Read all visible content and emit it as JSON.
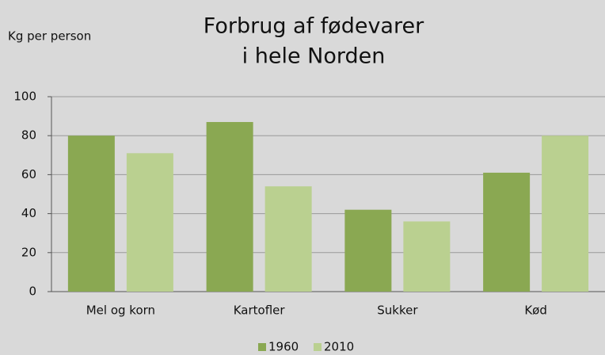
{
  "chart_data": {
    "type": "bar",
    "title": [
      "Forbrug af fødevarer",
      "i hele Norden"
    ],
    "y_label": "Kg per person",
    "categories": [
      "Mel og korn",
      "Kartofler",
      "Sukker",
      "Kød"
    ],
    "series": [
      {
        "name": "1960",
        "color": "#8aa852",
        "values": [
          80,
          87,
          42,
          61
        ]
      },
      {
        "name": "2010",
        "color": "#bad090",
        "values": [
          71,
          54,
          36,
          80
        ]
      }
    ],
    "ylim": [
      0,
      100
    ],
    "yticks": [
      0,
      20,
      40,
      60,
      80,
      100
    ],
    "grid": true,
    "legend": "bottom"
  }
}
